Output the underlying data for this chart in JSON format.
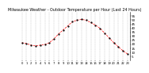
{
  "title": "Milwaukee Weather - Outdoor Temperature per Hour (Last 24 Hours)",
  "hours": [
    0,
    1,
    2,
    3,
    4,
    5,
    6,
    7,
    8,
    9,
    10,
    11,
    12,
    13,
    14,
    15,
    16,
    17,
    18,
    19,
    20,
    21,
    22,
    23
  ],
  "temps": [
    22,
    21,
    19,
    18,
    19,
    20,
    22,
    27,
    33,
    38,
    43,
    48,
    50,
    51,
    50,
    47,
    44,
    40,
    34,
    28,
    22,
    17,
    12,
    8
  ],
  "line_color": "#ff0000",
  "marker_color": "#000000",
  "line_style": "--",
  "marker": ".",
  "ylim": [
    0,
    60
  ],
  "yticks": [
    5,
    10,
    15,
    20,
    25,
    30,
    35,
    40,
    45,
    50,
    55
  ],
  "grid_color": "#aaaaaa",
  "bg_color": "#ffffff",
  "title_fontsize": 3.5,
  "tick_fontsize": 3.0,
  "xtick_labels": [
    "0",
    "1",
    "2",
    "3",
    "4",
    "5",
    "6",
    "7",
    "8",
    "9",
    "10",
    "11",
    "12",
    "13",
    "14",
    "15",
    "16",
    "17",
    "18",
    "19",
    "20",
    "21",
    "22",
    "23"
  ]
}
